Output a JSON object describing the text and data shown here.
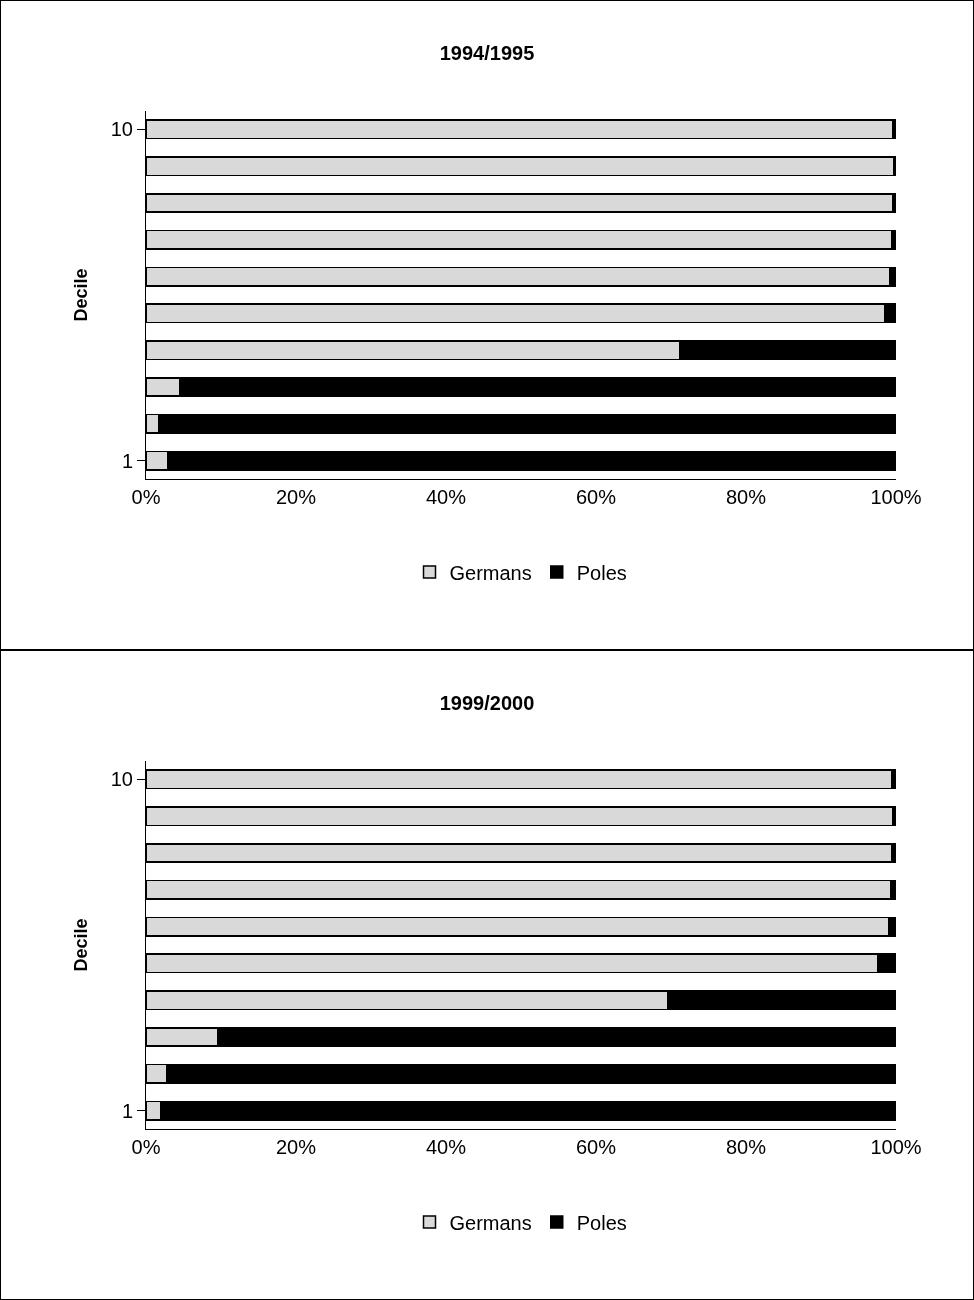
{
  "chart_data": [
    {
      "type": "bar",
      "title": "1994/1995",
      "ylabel": "Decile",
      "orientation": "horizontal",
      "stacked": true,
      "categories": [
        "10",
        null,
        null,
        null,
        null,
        null,
        null,
        null,
        null,
        "1"
      ],
      "series": [
        {
          "name": "Germans",
          "color": "#d9d9d9",
          "values": [
            99.6,
            99.7,
            99.5,
            99.4,
            99.2,
            98.5,
            71.2,
            4.5,
            1.7,
            2.9
          ]
        },
        {
          "name": "Poles",
          "color": "#000000",
          "values": [
            0.4,
            0.3,
            0.5,
            0.6,
            0.8,
            1.5,
            28.8,
            95.5,
            98.3,
            97.1
          ]
        }
      ],
      "xlim": [
        0,
        100
      ],
      "xticks": [
        {
          "value": 0,
          "label": "0%"
        },
        {
          "value": 20,
          "label": "20%"
        },
        {
          "value": 40,
          "label": "40%"
        },
        {
          "value": 60,
          "label": "60%"
        },
        {
          "value": 80,
          "label": "80%"
        },
        {
          "value": 100,
          "label": "100%"
        }
      ],
      "grid": false,
      "legend": "bottom"
    },
    {
      "type": "bar",
      "title": "1999/2000",
      "ylabel": "Decile",
      "orientation": "horizontal",
      "stacked": true,
      "categories": [
        "10",
        null,
        null,
        null,
        null,
        null,
        null,
        null,
        null,
        "1"
      ],
      "series": [
        {
          "name": "Germans",
          "color": "#d9d9d9",
          "values": [
            99.4,
            99.6,
            99.4,
            99.3,
            99.0,
            97.6,
            69.6,
            9.6,
            2.8,
            1.9
          ]
        },
        {
          "name": "Poles",
          "color": "#000000",
          "values": [
            0.6,
            0.4,
            0.6,
            0.7,
            1.0,
            2.4,
            30.4,
            90.4,
            97.2,
            98.1
          ]
        }
      ],
      "xlim": [
        0,
        100
      ],
      "xticks": [
        {
          "value": 0,
          "label": "0%"
        },
        {
          "value": 20,
          "label": "20%"
        },
        {
          "value": 40,
          "label": "40%"
        },
        {
          "value": 60,
          "label": "60%"
        },
        {
          "value": 80,
          "label": "80%"
        },
        {
          "value": 100,
          "label": "100%"
        }
      ],
      "grid": false,
      "legend": "bottom"
    }
  ]
}
